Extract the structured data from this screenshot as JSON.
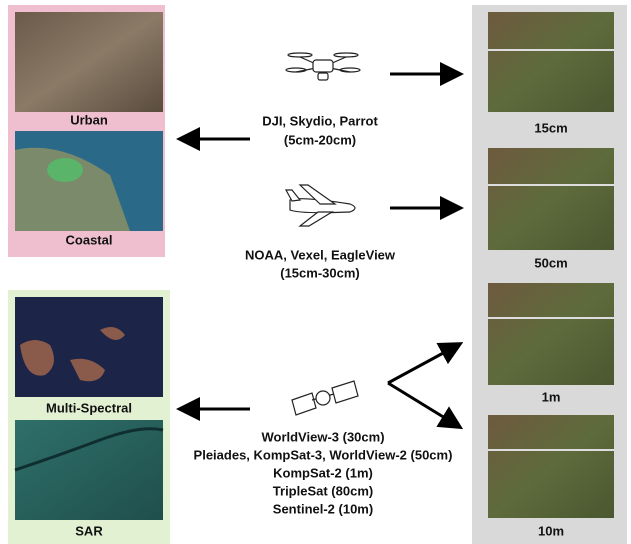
{
  "left_top": {
    "labels": [
      "Urban",
      "Coastal"
    ]
  },
  "left_bottom": {
    "labels": [
      "Multi-Spectral",
      "SAR"
    ]
  },
  "right": {
    "labels": [
      "15cm",
      "50cm",
      "1m",
      "10m"
    ]
  },
  "drone": {
    "name": "DJI, Skydio, Parrot",
    "range": "(5cm-20cm)"
  },
  "aircraft": {
    "name": "NOAA, Vexel, EagleView",
    "range": "(15cm-30cm)"
  },
  "satellite": {
    "lines": [
      "WorldView-3 (30cm)",
      "Pleiades, KompSat-3, WorldView-2 (50cm)",
      "KompSat-2 (1m)",
      "TripleSat (80cm)",
      "Sentinel-2 (10m)"
    ]
  }
}
